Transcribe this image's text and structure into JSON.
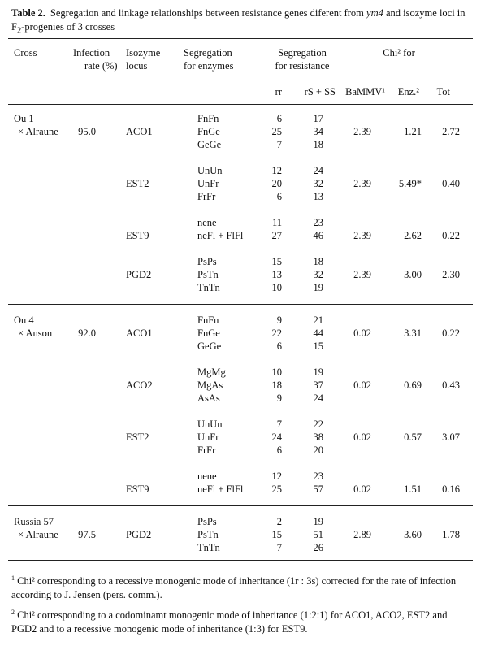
{
  "title": {
    "label": "Table 2.",
    "text_1": "Segregation and linkage relationships between resistance genes diferent from ",
    "italic": "ym4",
    "text_2": " and isozyme loci in F",
    "subscript": "2",
    "text_3": "-progenies of 3 crosses"
  },
  "headers": {
    "cross": "Cross",
    "infection_line1": "Infection",
    "infection_line2": "rate (%)",
    "locus_line1": "Isozyme",
    "locus_line2": "locus",
    "enz_seg_line1": "Segregation",
    "enz_seg_line2": "for enzymes",
    "res_seg_line1": "Segregation",
    "res_seg_line2": "for resistance",
    "chi": "Chi² for",
    "rr": "rr",
    "rs_ss": "rS + SS",
    "bammv": "BaMMV¹",
    "enz": "Enz.²",
    "tot": "Tot"
  },
  "crosses": [
    {
      "line1": "Ou 1",
      "line2": "× Alraune",
      "infection": "95.0",
      "loci": [
        {
          "locus": "ACO1",
          "rows": [
            [
              "FnFn",
              6,
              17
            ],
            [
              "FnGe",
              25,
              34
            ],
            [
              "GeGe",
              7,
              18
            ]
          ],
          "bammv": "2.39",
          "enz": "1.21",
          "tot": "2.72"
        },
        {
          "locus": "EST2",
          "rows": [
            [
              "UnUn",
              12,
              24
            ],
            [
              "UnFr",
              20,
              32
            ],
            [
              "FrFr",
              6,
              13
            ]
          ],
          "bammv": "2.39",
          "enz": "5.49*",
          "tot": "0.40"
        },
        {
          "locus": "EST9",
          "rows": [
            [
              "nene",
              11,
              23
            ],
            [
              "neFl + FlFl",
              27,
              46
            ]
          ],
          "bammv": "2.39",
          "enz": "2.62",
          "tot": "0.22"
        },
        {
          "locus": "PGD2",
          "rows": [
            [
              "PsPs",
              15,
              18
            ],
            [
              "PsTn",
              13,
              32
            ],
            [
              "TnTn",
              10,
              19
            ]
          ],
          "bammv": "2.39",
          "enz": "3.00",
          "tot": "2.30"
        }
      ]
    },
    {
      "line1": "Ou 4",
      "line2": "× Anson",
      "infection": "92.0",
      "loci": [
        {
          "locus": "ACO1",
          "rows": [
            [
              "FnFn",
              9,
              21
            ],
            [
              "FnGe",
              22,
              44
            ],
            [
              "GeGe",
              6,
              15
            ]
          ],
          "bammv": "0.02",
          "enz": "3.31",
          "tot": "0.22"
        },
        {
          "locus": "ACO2",
          "rows": [
            [
              "MgMg",
              10,
              19
            ],
            [
              "MgAs",
              18,
              37
            ],
            [
              "AsAs",
              9,
              24
            ]
          ],
          "bammv": "0.02",
          "enz": "0.69",
          "tot": "0.43"
        },
        {
          "locus": "EST2",
          "rows": [
            [
              "UnUn",
              7,
              22
            ],
            [
              "UnFr",
              24,
              38
            ],
            [
              "FrFr",
              6,
              20
            ]
          ],
          "bammv": "0.02",
          "enz": "0.57",
          "tot": "3.07"
        },
        {
          "locus": "EST9",
          "rows": [
            [
              "nene",
              12,
              23
            ],
            [
              "neFl + FlFl",
              25,
              57
            ]
          ],
          "bammv": "0.02",
          "enz": "1.51",
          "tot": "0.16"
        }
      ]
    },
    {
      "line1": "Russia 57",
      "line2": "× Alraune",
      "infection": "97.5",
      "loci": [
        {
          "locus": "PGD2",
          "rows": [
            [
              "PsPs",
              2,
              19
            ],
            [
              "PsTn",
              15,
              51
            ],
            [
              "TnTn",
              7,
              26
            ]
          ],
          "bammv": "2.89",
          "enz": "3.60",
          "tot": "1.78"
        }
      ]
    }
  ],
  "footnotes": [
    {
      "marker": "1",
      "text": "Chi² corresponding to a recessive monogenic mode of inheritance (1r : 3s) corrected for the rate of infection according to J. Jensen (pers. comm.)."
    },
    {
      "marker": "2",
      "text": "Chi² corresponding to a codominamt monogenic mode of inheritance (1:2:1) for ACO1, ACO2, EST2 and PGD2 and to a recessive monogenic mode of inheritance (1:3) for EST9."
    }
  ]
}
